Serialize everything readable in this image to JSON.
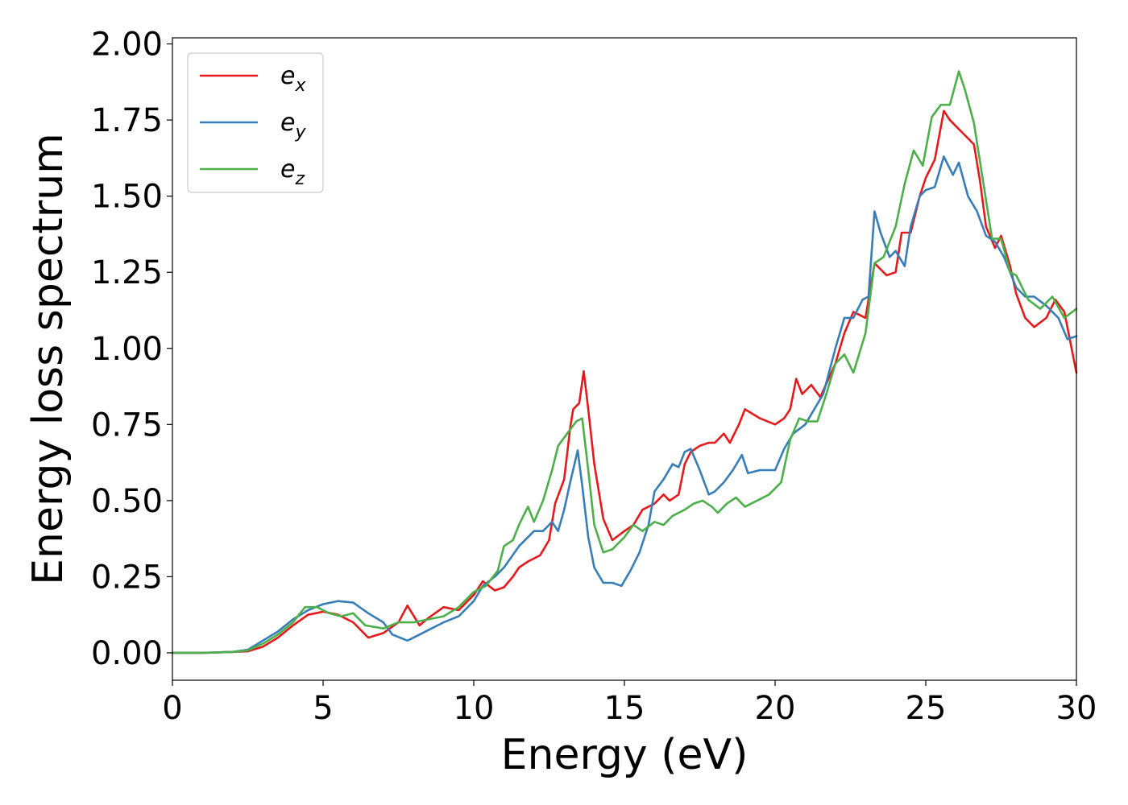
{
  "chart_data": {
    "type": "line",
    "title": "",
    "xlabel": "Energy (eV)",
    "ylabel": "Energy loss spectrum",
    "xlim": [
      0,
      30
    ],
    "ylim": [
      -0.09,
      2.02
    ],
    "xticks": [
      0,
      5,
      10,
      15,
      20,
      25,
      30
    ],
    "xtick_labels": [
      "0",
      "5",
      "10",
      "15",
      "20",
      "25",
      "30"
    ],
    "yticks": [
      0.0,
      0.25,
      0.5,
      0.75,
      1.0,
      1.25,
      1.5,
      1.75,
      2.0
    ],
    "ytick_labels": [
      "0.00",
      "0.25",
      "0.50",
      "0.75",
      "1.00",
      "1.25",
      "1.50",
      "1.75",
      "2.00"
    ],
    "grid": false,
    "legend_position": "top-left",
    "series": [
      {
        "name_base": "e",
        "name_sub": "x",
        "color": "#e41a1c",
        "points": [
          [
            0,
            0
          ],
          [
            1,
            0
          ],
          [
            2,
            0.003
          ],
          [
            2.5,
            0.005
          ],
          [
            3,
            0.02
          ],
          [
            3.5,
            0.05
          ],
          [
            4,
            0.09
          ],
          [
            4.5,
            0.125
          ],
          [
            5,
            0.135
          ],
          [
            5.5,
            0.125
          ],
          [
            6,
            0.1
          ],
          [
            6.5,
            0.05
          ],
          [
            7,
            0.065
          ],
          [
            7.5,
            0.1
          ],
          [
            7.8,
            0.155
          ],
          [
            8.2,
            0.09
          ],
          [
            8.5,
            0.115
          ],
          [
            9,
            0.15
          ],
          [
            9.5,
            0.14
          ],
          [
            10,
            0.19
          ],
          [
            10.3,
            0.235
          ],
          [
            10.7,
            0.205
          ],
          [
            11,
            0.215
          ],
          [
            11.3,
            0.25
          ],
          [
            11.5,
            0.28
          ],
          [
            11.8,
            0.3
          ],
          [
            12,
            0.31
          ],
          [
            12.2,
            0.32
          ],
          [
            12.5,
            0.37
          ],
          [
            12.7,
            0.49
          ],
          [
            13,
            0.57
          ],
          [
            13.2,
            0.74
          ],
          [
            13.3,
            0.8
          ],
          [
            13.5,
            0.82
          ],
          [
            13.65,
            0.925
          ],
          [
            13.8,
            0.8
          ],
          [
            14,
            0.62
          ],
          [
            14.3,
            0.44
          ],
          [
            14.6,
            0.37
          ],
          [
            15,
            0.4
          ],
          [
            15.3,
            0.42
          ],
          [
            15.6,
            0.47
          ],
          [
            16,
            0.49
          ],
          [
            16.3,
            0.52
          ],
          [
            16.5,
            0.5
          ],
          [
            16.8,
            0.52
          ],
          [
            17,
            0.62
          ],
          [
            17.2,
            0.66
          ],
          [
            17.5,
            0.68
          ],
          [
            17.8,
            0.69
          ],
          [
            18,
            0.69
          ],
          [
            18.3,
            0.72
          ],
          [
            18.5,
            0.69
          ],
          [
            18.8,
            0.75
          ],
          [
            19,
            0.8
          ],
          [
            19.5,
            0.77
          ],
          [
            20,
            0.75
          ],
          [
            20.3,
            0.77
          ],
          [
            20.5,
            0.8
          ],
          [
            20.7,
            0.9
          ],
          [
            20.9,
            0.85
          ],
          [
            21.2,
            0.88
          ],
          [
            21.5,
            0.84
          ],
          [
            22,
            0.95
          ],
          [
            22.3,
            1.05
          ],
          [
            22.6,
            1.12
          ],
          [
            23,
            1.1
          ],
          [
            23.3,
            1.28
          ],
          [
            23.7,
            1.24
          ],
          [
            24,
            1.25
          ],
          [
            24.2,
            1.38
          ],
          [
            24.5,
            1.38
          ],
          [
            24.8,
            1.5
          ],
          [
            25,
            1.56
          ],
          [
            25.3,
            1.62
          ],
          [
            25.6,
            1.78
          ],
          [
            25.8,
            1.75
          ],
          [
            26,
            1.73
          ],
          [
            26.3,
            1.7
          ],
          [
            26.6,
            1.67
          ],
          [
            26.8,
            1.55
          ],
          [
            27,
            1.4
          ],
          [
            27.3,
            1.33
          ],
          [
            27.5,
            1.37
          ],
          [
            27.8,
            1.27
          ],
          [
            28,
            1.18
          ],
          [
            28.3,
            1.1
          ],
          [
            28.6,
            1.07
          ],
          [
            29,
            1.1
          ],
          [
            29.3,
            1.16
          ],
          [
            29.6,
            1.12
          ],
          [
            30,
            0.92
          ]
        ]
      },
      {
        "name_base": "e",
        "name_sub": "y",
        "color": "#377eb8",
        "points": [
          [
            0,
            0
          ],
          [
            1,
            0
          ],
          [
            2,
            0.003
          ],
          [
            2.5,
            0.01
          ],
          [
            3,
            0.04
          ],
          [
            3.5,
            0.07
          ],
          [
            4,
            0.11
          ],
          [
            4.5,
            0.14
          ],
          [
            5,
            0.16
          ],
          [
            5.5,
            0.17
          ],
          [
            6,
            0.165
          ],
          [
            6.5,
            0.13
          ],
          [
            7,
            0.1
          ],
          [
            7.3,
            0.06
          ],
          [
            7.8,
            0.04
          ],
          [
            8.2,
            0.06
          ],
          [
            8.6,
            0.08
          ],
          [
            9,
            0.1
          ],
          [
            9.5,
            0.12
          ],
          [
            10,
            0.17
          ],
          [
            10.3,
            0.22
          ],
          [
            10.7,
            0.25
          ],
          [
            11,
            0.28
          ],
          [
            11.5,
            0.35
          ],
          [
            12,
            0.4
          ],
          [
            12.3,
            0.4
          ],
          [
            12.6,
            0.43
          ],
          [
            12.8,
            0.4
          ],
          [
            13,
            0.47
          ],
          [
            13.2,
            0.56
          ],
          [
            13.45,
            0.665
          ],
          [
            13.6,
            0.55
          ],
          [
            13.8,
            0.38
          ],
          [
            14,
            0.28
          ],
          [
            14.3,
            0.23
          ],
          [
            14.6,
            0.23
          ],
          [
            14.9,
            0.22
          ],
          [
            15.2,
            0.27
          ],
          [
            15.5,
            0.33
          ],
          [
            15.8,
            0.42
          ],
          [
            16,
            0.53
          ],
          [
            16.3,
            0.57
          ],
          [
            16.6,
            0.62
          ],
          [
            16.8,
            0.61
          ],
          [
            17,
            0.66
          ],
          [
            17.2,
            0.67
          ],
          [
            17.5,
            0.6
          ],
          [
            17.8,
            0.52
          ],
          [
            18,
            0.53
          ],
          [
            18.3,
            0.56
          ],
          [
            18.6,
            0.6
          ],
          [
            18.9,
            0.65
          ],
          [
            19.1,
            0.59
          ],
          [
            19.5,
            0.6
          ],
          [
            20,
            0.6
          ],
          [
            20.3,
            0.67
          ],
          [
            20.6,
            0.72
          ],
          [
            21,
            0.75
          ],
          [
            21.3,
            0.8
          ],
          [
            21.6,
            0.85
          ],
          [
            22,
            1.0
          ],
          [
            22.3,
            1.1
          ],
          [
            22.6,
            1.1
          ],
          [
            22.9,
            1.16
          ],
          [
            23.1,
            1.17
          ],
          [
            23.3,
            1.45
          ],
          [
            23.5,
            1.38
          ],
          [
            23.8,
            1.3
          ],
          [
            24,
            1.32
          ],
          [
            24.3,
            1.27
          ],
          [
            24.5,
            1.4
          ],
          [
            24.8,
            1.5
          ],
          [
            25,
            1.52
          ],
          [
            25.3,
            1.53
          ],
          [
            25.6,
            1.63
          ],
          [
            25.9,
            1.57
          ],
          [
            26.1,
            1.61
          ],
          [
            26.4,
            1.5
          ],
          [
            26.7,
            1.45
          ],
          [
            27,
            1.37
          ],
          [
            27.3,
            1.35
          ],
          [
            27.6,
            1.3
          ],
          [
            28,
            1.2
          ],
          [
            28.3,
            1.17
          ],
          [
            28.6,
            1.17
          ],
          [
            29,
            1.14
          ],
          [
            29.4,
            1.1
          ],
          [
            29.7,
            1.03
          ],
          [
            30,
            1.04
          ]
        ]
      },
      {
        "name_base": "e",
        "name_sub": "z",
        "color": "#4daf4a",
        "points": [
          [
            0,
            0
          ],
          [
            1,
            0
          ],
          [
            2,
            0.003
          ],
          [
            2.5,
            0.008
          ],
          [
            3,
            0.03
          ],
          [
            3.5,
            0.06
          ],
          [
            4,
            0.1
          ],
          [
            4.4,
            0.15
          ],
          [
            4.8,
            0.15
          ],
          [
            5.2,
            0.13
          ],
          [
            5.6,
            0.12
          ],
          [
            6,
            0.13
          ],
          [
            6.4,
            0.09
          ],
          [
            7,
            0.08
          ],
          [
            7.5,
            0.1
          ],
          [
            8,
            0.1
          ],
          [
            8.5,
            0.11
          ],
          [
            9,
            0.12
          ],
          [
            9.5,
            0.15
          ],
          [
            10,
            0.2
          ],
          [
            10.4,
            0.22
          ],
          [
            10.8,
            0.27
          ],
          [
            11,
            0.35
          ],
          [
            11.3,
            0.37
          ],
          [
            11.5,
            0.42
          ],
          [
            11.8,
            0.48
          ],
          [
            12,
            0.43
          ],
          [
            12.3,
            0.5
          ],
          [
            12.6,
            0.6
          ],
          [
            12.8,
            0.68
          ],
          [
            13.1,
            0.72
          ],
          [
            13.4,
            0.76
          ],
          [
            13.6,
            0.77
          ],
          [
            13.8,
            0.6
          ],
          [
            14,
            0.42
          ],
          [
            14.3,
            0.33
          ],
          [
            14.6,
            0.34
          ],
          [
            15,
            0.38
          ],
          [
            15.3,
            0.42
          ],
          [
            15.6,
            0.4
          ],
          [
            16,
            0.43
          ],
          [
            16.3,
            0.42
          ],
          [
            16.6,
            0.45
          ],
          [
            17,
            0.47
          ],
          [
            17.3,
            0.49
          ],
          [
            17.6,
            0.5
          ],
          [
            17.9,
            0.48
          ],
          [
            18.1,
            0.46
          ],
          [
            18.4,
            0.49
          ],
          [
            18.7,
            0.51
          ],
          [
            19,
            0.48
          ],
          [
            19.4,
            0.5
          ],
          [
            19.8,
            0.52
          ],
          [
            20.2,
            0.56
          ],
          [
            20.5,
            0.7
          ],
          [
            20.8,
            0.77
          ],
          [
            21.1,
            0.76
          ],
          [
            21.4,
            0.76
          ],
          [
            21.7,
            0.85
          ],
          [
            22,
            0.95
          ],
          [
            22.3,
            0.98
          ],
          [
            22.6,
            0.92
          ],
          [
            23,
            1.05
          ],
          [
            23.3,
            1.28
          ],
          [
            23.6,
            1.3
          ],
          [
            24,
            1.4
          ],
          [
            24.3,
            1.54
          ],
          [
            24.6,
            1.65
          ],
          [
            24.9,
            1.6
          ],
          [
            25.2,
            1.76
          ],
          [
            25.5,
            1.8
          ],
          [
            25.8,
            1.8
          ],
          [
            26.1,
            1.91
          ],
          [
            26.3,
            1.85
          ],
          [
            26.6,
            1.74
          ],
          [
            26.9,
            1.55
          ],
          [
            27.2,
            1.36
          ],
          [
            27.5,
            1.36
          ],
          [
            27.8,
            1.25
          ],
          [
            28,
            1.24
          ],
          [
            28.4,
            1.16
          ],
          [
            28.8,
            1.13
          ],
          [
            29.2,
            1.17
          ],
          [
            29.6,
            1.1
          ],
          [
            30,
            1.13
          ]
        ]
      }
    ]
  }
}
